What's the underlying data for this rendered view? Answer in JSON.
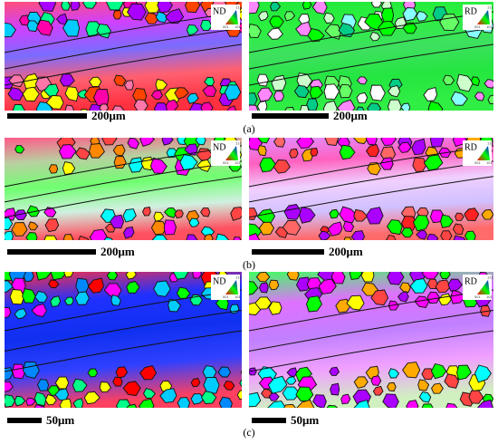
{
  "panels": [
    {
      "label": "(a)",
      "maps": [
        {
          "direction": "ND",
          "scale": "200μm"
        },
        {
          "direction": "RD",
          "scale": "200μm"
        }
      ]
    },
    {
      "label": "(b)",
      "maps": [
        {
          "direction": "ND",
          "scale": "200μm"
        },
        {
          "direction": "RD",
          "scale": "200μm"
        }
      ]
    },
    {
      "label": "(c)",
      "maps": [
        {
          "direction": "ND",
          "scale": "50μm"
        },
        {
          "direction": "RD",
          "scale": "50μm"
        }
      ]
    }
  ],
  "legend_triangle": {
    "top": "111",
    "left": "001",
    "right": "101"
  }
}
